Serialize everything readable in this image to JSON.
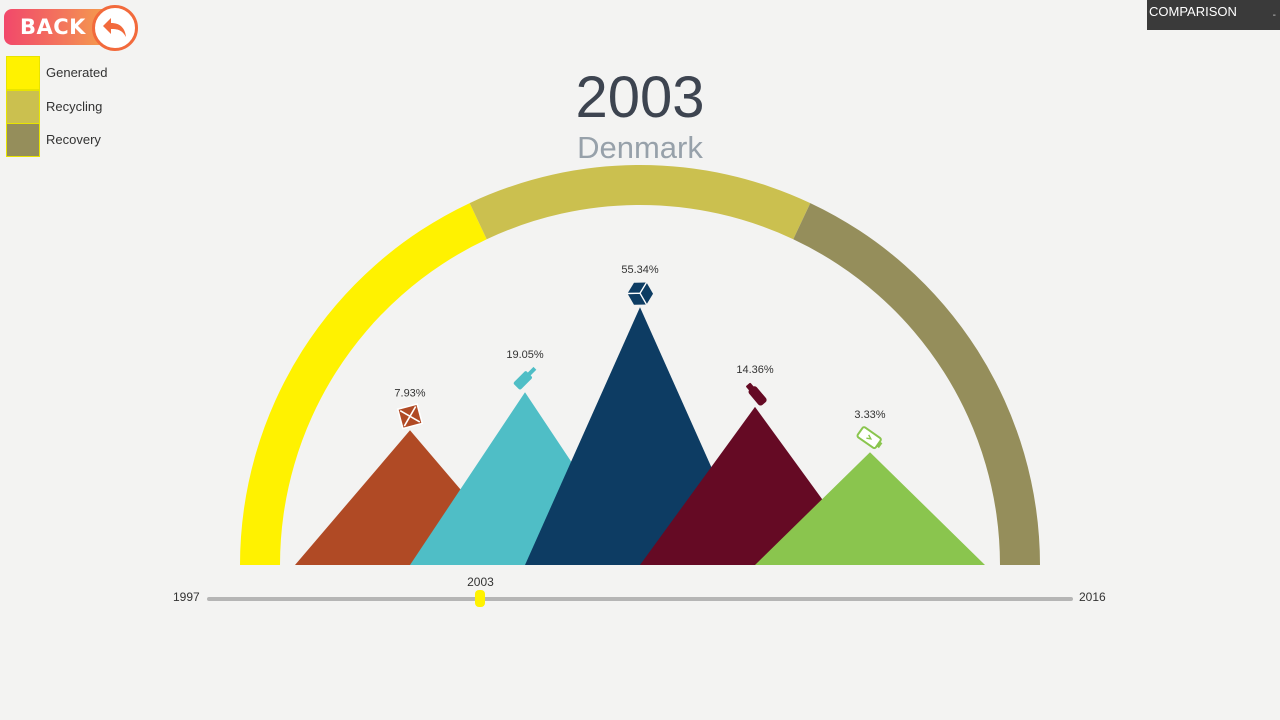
{
  "back_button": {
    "label": "BACK"
  },
  "legend": {
    "items": [
      {
        "label": "Generated",
        "color": "#fff200"
      },
      {
        "label": "Recycling",
        "color": "#cbc04f"
      },
      {
        "label": "Recovery",
        "color": "#958e5b"
      }
    ]
  },
  "comparison": {
    "label": "COMPARISON"
  },
  "header": {
    "year": "2003",
    "country": "Denmark"
  },
  "chart_data": {
    "type": "semi-donut with triangle peaks",
    "title": "2003",
    "subtitle": "Denmark",
    "gauge": [
      {
        "name": "Generated",
        "color": "#fff200",
        "share": 0.36
      },
      {
        "name": "Recycling",
        "color": "#cbc04f",
        "share": 0.28
      },
      {
        "name": "Recovery",
        "color": "#958e5b",
        "share": 0.36
      }
    ],
    "series": [
      {
        "name": "wood",
        "icon": "crate-icon",
        "value": 7.93,
        "label": "7.93%",
        "color": "#b04a25"
      },
      {
        "name": "glass",
        "icon": "bottle-icon",
        "value": 19.05,
        "label": "19.05%",
        "color": "#4fbec6"
      },
      {
        "name": "paper",
        "icon": "box-icon",
        "value": 55.34,
        "label": "55.34%",
        "color": "#0d3c63"
      },
      {
        "name": "plastic",
        "icon": "plastic-bottle-icon",
        "value": 14.36,
        "label": "14.36%",
        "color": "#650a24"
      },
      {
        "name": "other",
        "icon": "battery-icon",
        "value": 3.33,
        "label": "3.33%",
        "color": "#8ac54e"
      }
    ]
  },
  "slider": {
    "min": 1997,
    "max": 2016,
    "value": 2003,
    "min_label": "1997",
    "max_label": "2016",
    "value_label": "2003"
  }
}
